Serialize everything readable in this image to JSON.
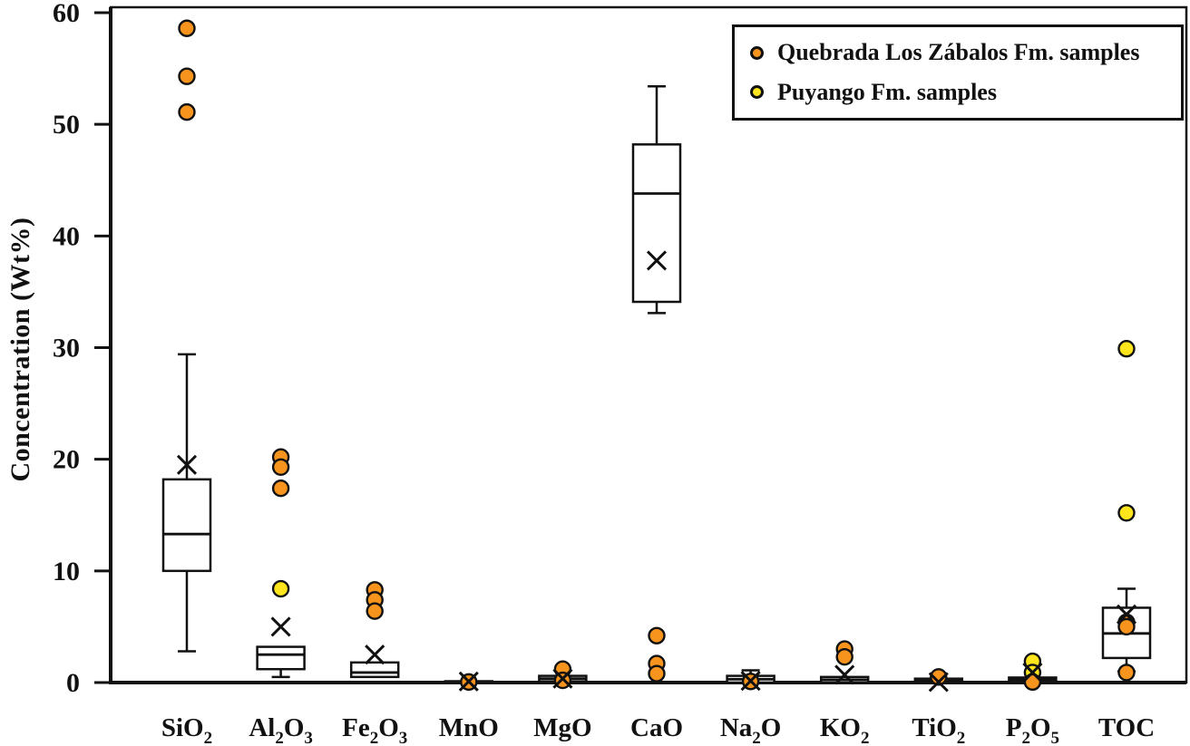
{
  "chart_data": {
    "type": "boxplot",
    "title": "",
    "ylabel": "Concentration (Wt%)",
    "xlabel": "",
    "ylim": [
      0,
      60
    ],
    "ytick_interval": 10,
    "grid": false,
    "legend_position": "top-right",
    "colors": {
      "quebrada": "#F7941E",
      "puyango": "#FFE51C",
      "stroke": "#111111",
      "box_fill": "#FFFFFF"
    },
    "legend": [
      {
        "id": "quebrada",
        "label": "Quebrada Los Zábalos Fm. samples"
      },
      {
        "id": "puyango",
        "label": "Puyango Fm. samples"
      }
    ],
    "categories": [
      {
        "id": "SiO2",
        "parts": [
          {
            "t": "SiO"
          },
          {
            "t": "2",
            "sub": true
          }
        ]
      },
      {
        "id": "Al2O3",
        "parts": [
          {
            "t": "Al"
          },
          {
            "t": "2",
            "sub": true
          },
          {
            "t": "O"
          },
          {
            "t": "3",
            "sub": true
          }
        ]
      },
      {
        "id": "Fe2O3",
        "parts": [
          {
            "t": "Fe"
          },
          {
            "t": "2",
            "sub": true
          },
          {
            "t": "O"
          },
          {
            "t": "3",
            "sub": true
          }
        ]
      },
      {
        "id": "MnO",
        "parts": [
          {
            "t": "MnO"
          }
        ]
      },
      {
        "id": "MgO",
        "parts": [
          {
            "t": "MgO"
          }
        ]
      },
      {
        "id": "CaO",
        "parts": [
          {
            "t": "CaO"
          }
        ]
      },
      {
        "id": "Na2O",
        "parts": [
          {
            "t": "Na"
          },
          {
            "t": "2",
            "sub": true
          },
          {
            "t": "O"
          }
        ]
      },
      {
        "id": "KO2",
        "parts": [
          {
            "t": "KO"
          },
          {
            "t": "2",
            "sub": true
          }
        ]
      },
      {
        "id": "TiO2",
        "parts": [
          {
            "t": "TiO"
          },
          {
            "t": "2",
            "sub": true
          }
        ]
      },
      {
        "id": "P2O5",
        "parts": [
          {
            "t": "P"
          },
          {
            "t": "2",
            "sub": true
          },
          {
            "t": "O"
          },
          {
            "t": "5",
            "sub": true
          }
        ]
      },
      {
        "id": "TOC",
        "parts": [
          {
            "t": "TOC"
          }
        ]
      }
    ],
    "boxes": [
      {
        "category": "SiO2",
        "whisker_low": 2.8,
        "q1": 10.0,
        "median": 13.3,
        "q3": 18.2,
        "whisker_high": 29.4,
        "mean": 19.5
      },
      {
        "category": "Al2O3",
        "whisker_low": 0.5,
        "q1": 1.2,
        "median": 2.5,
        "q3": 3.2,
        "whisker_high": 3.2,
        "mean": 5.0
      },
      {
        "category": "Fe2O3",
        "whisker_low": 0.5,
        "q1": 0.5,
        "median": 0.9,
        "q3": 1.8,
        "whisker_high": 1.8,
        "mean": 2.5
      },
      {
        "category": "MnO",
        "whisker_low": 0.0,
        "q1": 0.0,
        "median": 0.05,
        "q3": 0.12,
        "whisker_high": 0.12,
        "mean": 0.1
      },
      {
        "category": "MgO",
        "whisker_low": 0.1,
        "q1": 0.1,
        "median": 0.35,
        "q3": 0.6,
        "whisker_high": 0.6,
        "mean": 0.35
      },
      {
        "category": "CaO",
        "whisker_low": 33.1,
        "q1": 34.1,
        "median": 43.8,
        "q3": 48.2,
        "whisker_high": 53.4,
        "mean": 37.8
      },
      {
        "category": "Na2O",
        "whisker_low": 0.0,
        "q1": 0.0,
        "median": 0.3,
        "q3": 0.6,
        "whisker_high": 1.1,
        "mean": 0.15
      },
      {
        "category": "KO2",
        "whisker_low": 0.0,
        "q1": 0.0,
        "median": 0.25,
        "q3": 0.5,
        "whisker_high": 0.5,
        "mean": 0.7
      },
      {
        "category": "TiO2",
        "whisker_low": 0.0,
        "q1": 0.0,
        "median": 0.15,
        "q3": 0.35,
        "whisker_high": 0.35,
        "mean": 0.05
      },
      {
        "category": "P2O5",
        "whisker_low": 0.05,
        "q1": 0.05,
        "median": 0.25,
        "q3": 0.45,
        "whisker_high": 0.45,
        "mean": 0.9
      },
      {
        "category": "TOC",
        "whisker_low": 1.0,
        "q1": 2.2,
        "median": 4.4,
        "q3": 6.7,
        "whisker_high": 8.4,
        "mean": 6.1
      }
    ],
    "points": [
      {
        "category": "SiO2",
        "series": "quebrada",
        "value": 58.6
      },
      {
        "category": "SiO2",
        "series": "quebrada",
        "value": 54.3
      },
      {
        "category": "SiO2",
        "series": "quebrada",
        "value": 51.1
      },
      {
        "category": "Al2O3",
        "series": "quebrada",
        "value": 20.2
      },
      {
        "category": "Al2O3",
        "series": "quebrada",
        "value": 19.3
      },
      {
        "category": "Al2O3",
        "series": "quebrada",
        "value": 17.4
      },
      {
        "category": "Al2O3",
        "series": "puyango",
        "value": 8.4
      },
      {
        "category": "Fe2O3",
        "series": "quebrada",
        "value": 8.3
      },
      {
        "category": "Fe2O3",
        "series": "quebrada",
        "value": 7.4
      },
      {
        "category": "Fe2O3",
        "series": "quebrada",
        "value": 6.4
      },
      {
        "category": "MnO",
        "series": "quebrada",
        "value": 0.05
      },
      {
        "category": "MgO",
        "series": "quebrada",
        "value": 1.2
      },
      {
        "category": "MgO",
        "series": "quebrada",
        "value": 0.2
      },
      {
        "category": "CaO",
        "series": "quebrada",
        "value": 4.2
      },
      {
        "category": "CaO",
        "series": "quebrada",
        "value": 1.7
      },
      {
        "category": "CaO",
        "series": "quebrada",
        "value": 0.8
      },
      {
        "category": "Na2O",
        "series": "quebrada",
        "value": 0.1
      },
      {
        "category": "KO2",
        "series": "quebrada",
        "value": 3.0
      },
      {
        "category": "KO2",
        "series": "quebrada",
        "value": 2.3
      },
      {
        "category": "TiO2",
        "series": "quebrada",
        "value": 0.5
      },
      {
        "category": "P2O5",
        "series": "puyango",
        "value": 1.9
      },
      {
        "category": "P2O5",
        "series": "puyango",
        "value": 0.9
      },
      {
        "category": "P2O5",
        "series": "quebrada",
        "value": 0.05
      },
      {
        "category": "TOC",
        "series": "puyango",
        "value": 29.9
      },
      {
        "category": "TOC",
        "series": "puyango",
        "value": 15.2
      },
      {
        "category": "TOC",
        "series": "quebrada",
        "value": 5.4
      },
      {
        "category": "TOC",
        "series": "quebrada",
        "value": 5.0
      },
      {
        "category": "TOC",
        "series": "quebrada",
        "value": 0.9
      }
    ]
  }
}
